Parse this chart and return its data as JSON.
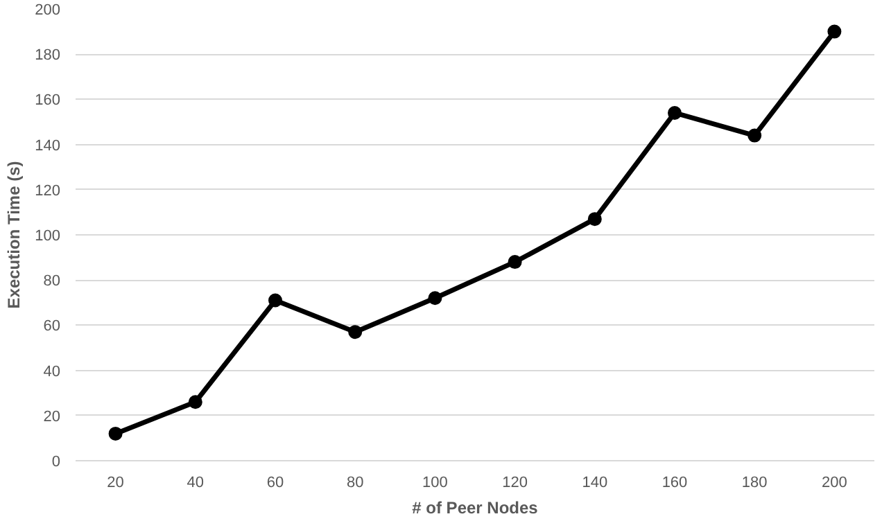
{
  "chart_data": {
    "type": "line",
    "xlabel": "# of Peer Nodes",
    "ylabel": "Execution Time (s)",
    "categories": [
      "20",
      "40",
      "60",
      "80",
      "100",
      "120",
      "140",
      "160",
      "180",
      "200"
    ],
    "series": [
      {
        "color": "#000000",
        "values": [
          12,
          26,
          71,
          57,
          72,
          88,
          107,
          154,
          144,
          190
        ]
      }
    ],
    "ylim": [
      0,
      200
    ],
    "yticks": [
      0,
      20,
      40,
      60,
      80,
      100,
      120,
      140,
      160,
      180,
      200
    ],
    "grid": "y",
    "marker": "circle",
    "line_style": "solid"
  }
}
